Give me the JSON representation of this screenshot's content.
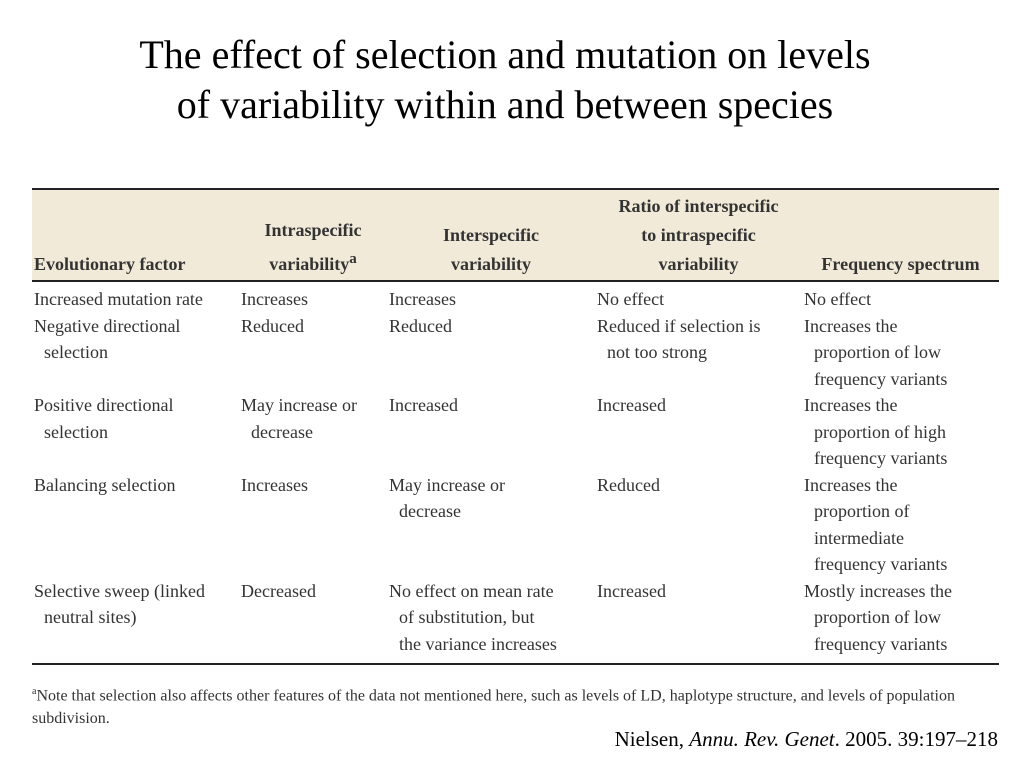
{
  "title": {
    "line1": "The effect of selection and mutation on levels",
    "line2": "of variability within and between species"
  },
  "table": {
    "headers": {
      "factor": "Evolutionary factor",
      "intra_line1": "Intraspecific",
      "intra_line2": "variability",
      "intra_sup": "a",
      "inter_line1": "Interspecific",
      "inter_line2": "variability",
      "ratio_line1": "Ratio of interspecific",
      "ratio_line2": "to intraspecific",
      "ratio_line3": "variability",
      "freq": "Frequency spectrum"
    },
    "rows": [
      {
        "factor": [
          "Increased mutation rate"
        ],
        "intra": [
          "Increases"
        ],
        "inter": [
          "Increases"
        ],
        "ratio": [
          "No effect"
        ],
        "freq": [
          "No effect"
        ]
      },
      {
        "factor": [
          "Negative directional",
          "selection"
        ],
        "intra": [
          "Reduced"
        ],
        "inter": [
          "Reduced"
        ],
        "ratio": [
          "Reduced if selection is",
          "not too strong"
        ],
        "freq": [
          "Increases the",
          "proportion of low",
          "frequency variants"
        ]
      },
      {
        "factor": [
          "Positive directional",
          "selection"
        ],
        "intra": [
          "May increase or",
          "decrease"
        ],
        "inter": [
          "Increased"
        ],
        "ratio": [
          "Increased"
        ],
        "freq": [
          "Increases the",
          "proportion of high",
          "frequency variants"
        ]
      },
      {
        "factor": [
          "Balancing selection"
        ],
        "intra": [
          "Increases"
        ],
        "inter": [
          "May increase or",
          "decrease"
        ],
        "ratio": [
          "Reduced"
        ],
        "freq": [
          "Increases the",
          "proportion of",
          "intermediate",
          "frequency variants"
        ]
      },
      {
        "factor": [
          "Selective sweep (linked",
          "neutral sites)"
        ],
        "intra": [
          "Decreased"
        ],
        "inter": [
          "No effect on mean rate",
          "of substitution, but",
          "the variance increases"
        ],
        "ratio": [
          "Increased"
        ],
        "freq": [
          "Mostly increases the",
          "proportion of low",
          "frequency variants"
        ]
      }
    ]
  },
  "footnote": {
    "marker": "a",
    "text": "Note that selection also affects other features of the data not mentioned here, such as levels of LD, haplotype structure, and levels of population subdivision."
  },
  "citation": {
    "author": "Nielsen, ",
    "journal": "Annu. Rev. Genet",
    "rest": ". 2005. 39:197–218"
  }
}
